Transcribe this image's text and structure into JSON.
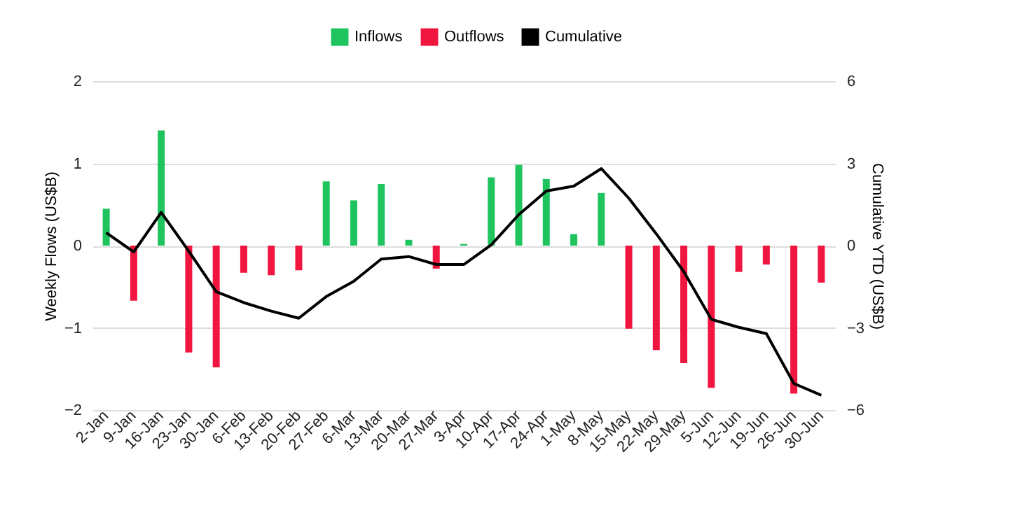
{
  "chart_data": {
    "type": "bar",
    "ylabel": "Weekly Flows (US$B)",
    "y2label": "Cumulative YTD (US$B)",
    "categories": [
      "2-Jan",
      "9-Jan",
      "16-Jan",
      "23-Jan",
      "30-Jan",
      "6-Feb",
      "13-Feb",
      "20-Feb",
      "27-Feb",
      "6-Mar",
      "13-Mar",
      "20-Mar",
      "27-Mar",
      "3-Apr",
      "10-Apr",
      "17-Apr",
      "24-Apr",
      "1-May",
      "8-May",
      "15-May",
      "22-May",
      "29-May",
      "5-Jun",
      "12-Jun",
      "19-Jun",
      "26-Jun",
      "30-Jun"
    ],
    "series": [
      {
        "name": "Inflows",
        "color": "#1fc45e",
        "values": [
          0.45,
          null,
          1.4,
          null,
          null,
          null,
          null,
          null,
          0.78,
          0.55,
          0.75,
          0.07,
          null,
          0.02,
          0.83,
          0.98,
          0.81,
          0.14,
          0.64,
          null,
          null,
          null,
          null,
          null,
          null,
          null,
          null
        ]
      },
      {
        "name": "Outflows",
        "color": "#f0163f",
        "values": [
          null,
          -0.67,
          null,
          -1.3,
          -1.48,
          -0.33,
          -0.36,
          -0.3,
          null,
          null,
          null,
          null,
          -0.28,
          null,
          null,
          null,
          null,
          null,
          null,
          -1.01,
          -1.27,
          -1.43,
          -1.73,
          -0.32,
          -0.23,
          -1.8,
          -0.45
        ]
      },
      {
        "name": "Cumulative",
        "type": "line",
        "axis": "y2",
        "color": "#000000",
        "values": [
          0.47,
          -0.23,
          1.21,
          -0.2,
          -1.68,
          -2.08,
          -2.39,
          -2.65,
          -1.86,
          -1.3,
          -0.49,
          -0.4,
          -0.69,
          -0.69,
          0.03,
          1.13,
          1.99,
          2.17,
          2.81,
          1.73,
          0.43,
          -0.95,
          -2.69,
          -2.98,
          -3.21,
          -5.03,
          -5.46
        ]
      }
    ],
    "ylim": [
      -2,
      2
    ],
    "yticks": [
      -2,
      -1,
      0,
      1,
      2
    ],
    "y2lim": [
      -6,
      6
    ],
    "y2ticks": [
      -6,
      -3,
      0,
      3,
      6
    ],
    "grid": "y",
    "legend": "top",
    "line_style": "solid"
  }
}
